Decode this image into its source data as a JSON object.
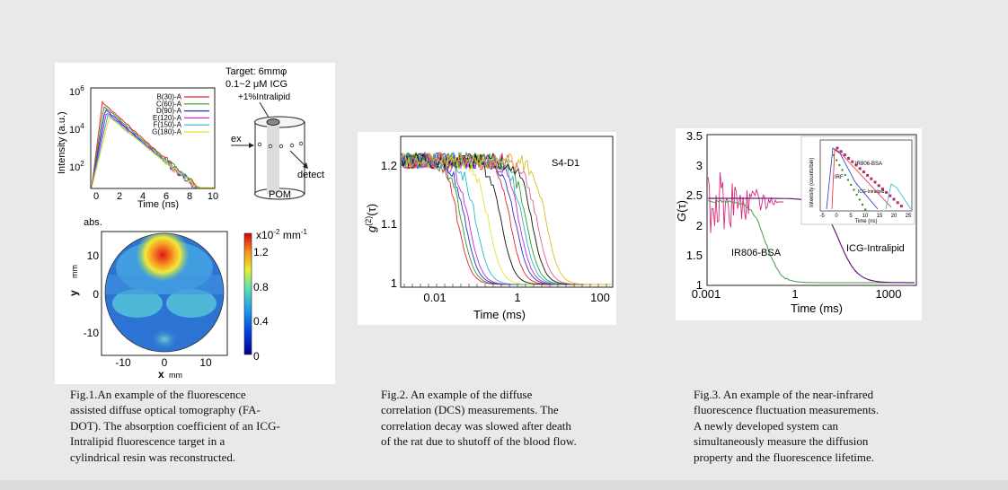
{
  "fig1": {
    "spectra": {
      "ylabel": "Intensity (a.u.)",
      "xlabel": "Time (ns)",
      "yticks": [
        "10",
        "10",
        "10"
      ],
      "yexps": [
        "6",
        "4",
        "2"
      ],
      "xticks": [
        "0",
        "2",
        "4",
        "6",
        "8",
        "10"
      ],
      "legend": [
        {
          "label": "B(30)-A",
          "color": "#e8232d"
        },
        {
          "label": "C(60)-A",
          "color": "#2a9d2a"
        },
        {
          "label": "D(90)-A",
          "color": "#2433c8"
        },
        {
          "label": "E(120)-A",
          "color": "#c42bc8"
        },
        {
          "label": "F(150)-A",
          "color": "#27b4d6"
        },
        {
          "label": "G(180)-A",
          "color": "#e8e02a"
        }
      ]
    },
    "schematic": {
      "target": "Target: 6mmφ",
      "icg": "0.1~2 μM ICG",
      "intralipid": "+1%Intralipid",
      "ex": "ex",
      "detect": "detect",
      "pom": "POM"
    },
    "map": {
      "abs": "abs.",
      "cbar_title": "x10",
      "cbar_exp": "-2",
      "cbar_unit": " mm",
      "cbar_unit_exp": "-1",
      "cbar_ticks": [
        "1.2",
        "0.8",
        "0.4",
        "0"
      ],
      "yticks": [
        "10",
        "0",
        "-10"
      ],
      "xticks": [
        "-10",
        "0",
        "10"
      ],
      "ylabel_y": "y",
      "ylabel_mm": "mm",
      "xlabel_x": "x",
      "xlabel_mm": "mm"
    },
    "caption_lines": [
      "Fig.1.An   example   of   the   fluorescence",
      "assisted  diffuse  optical  tomography  (FA-",
      "DOT). The absorption coefficient of an ICG-",
      "Intralipid    fluorescence    target    in    a",
      "cylindrical resin was reconstructed."
    ]
  },
  "fig2": {
    "ylabel_main": "g",
    "ylabel_sup": "(2)",
    "ylabel_tail": "(τ)",
    "xlabel": "Time (ms)",
    "sample": "S4-D1",
    "yticks": [
      "1.2",
      "1.1",
      "1"
    ],
    "xticks": [
      "0.01",
      "1",
      "100"
    ],
    "caption_lines": [
      "Fig.2.    An    example    of    the    diffuse",
      "correlation  (DCS)  measurements.  The",
      "correlation decay was slowed after death",
      "of the rat due to shutoff of the blood flow."
    ]
  },
  "fig3": {
    "ylabel_main": "G",
    "ylabel_tail": "(τ)",
    "xlabel": "Time (ms)",
    "yticks": [
      "3.5",
      "3",
      "2.5",
      "2",
      "1.5",
      "1"
    ],
    "xticks": [
      "0.001",
      "1",
      "1000"
    ],
    "label_ir": "IR806-BSA",
    "label_icg": "ICG-Intralipid",
    "inset": {
      "ylabel": "Intensity (counts/bin)",
      "xlabel": "Time (ns)",
      "xticks": [
        "-5",
        "0",
        "5",
        "10",
        "15",
        "20",
        "25"
      ],
      "label_ir": "IR806-BSA",
      "label_irf": "IRF",
      "label_icg": "ICG-Intralipid"
    },
    "caption_lines": [
      "Fig.3. An example of the near-infrared",
      "fluorescence   fluctuation   measurements.",
      "A      newly      developed      system      can",
      "simultaneously   measure   the   diffusion",
      "property and the fluorescence lifetime."
    ]
  }
}
